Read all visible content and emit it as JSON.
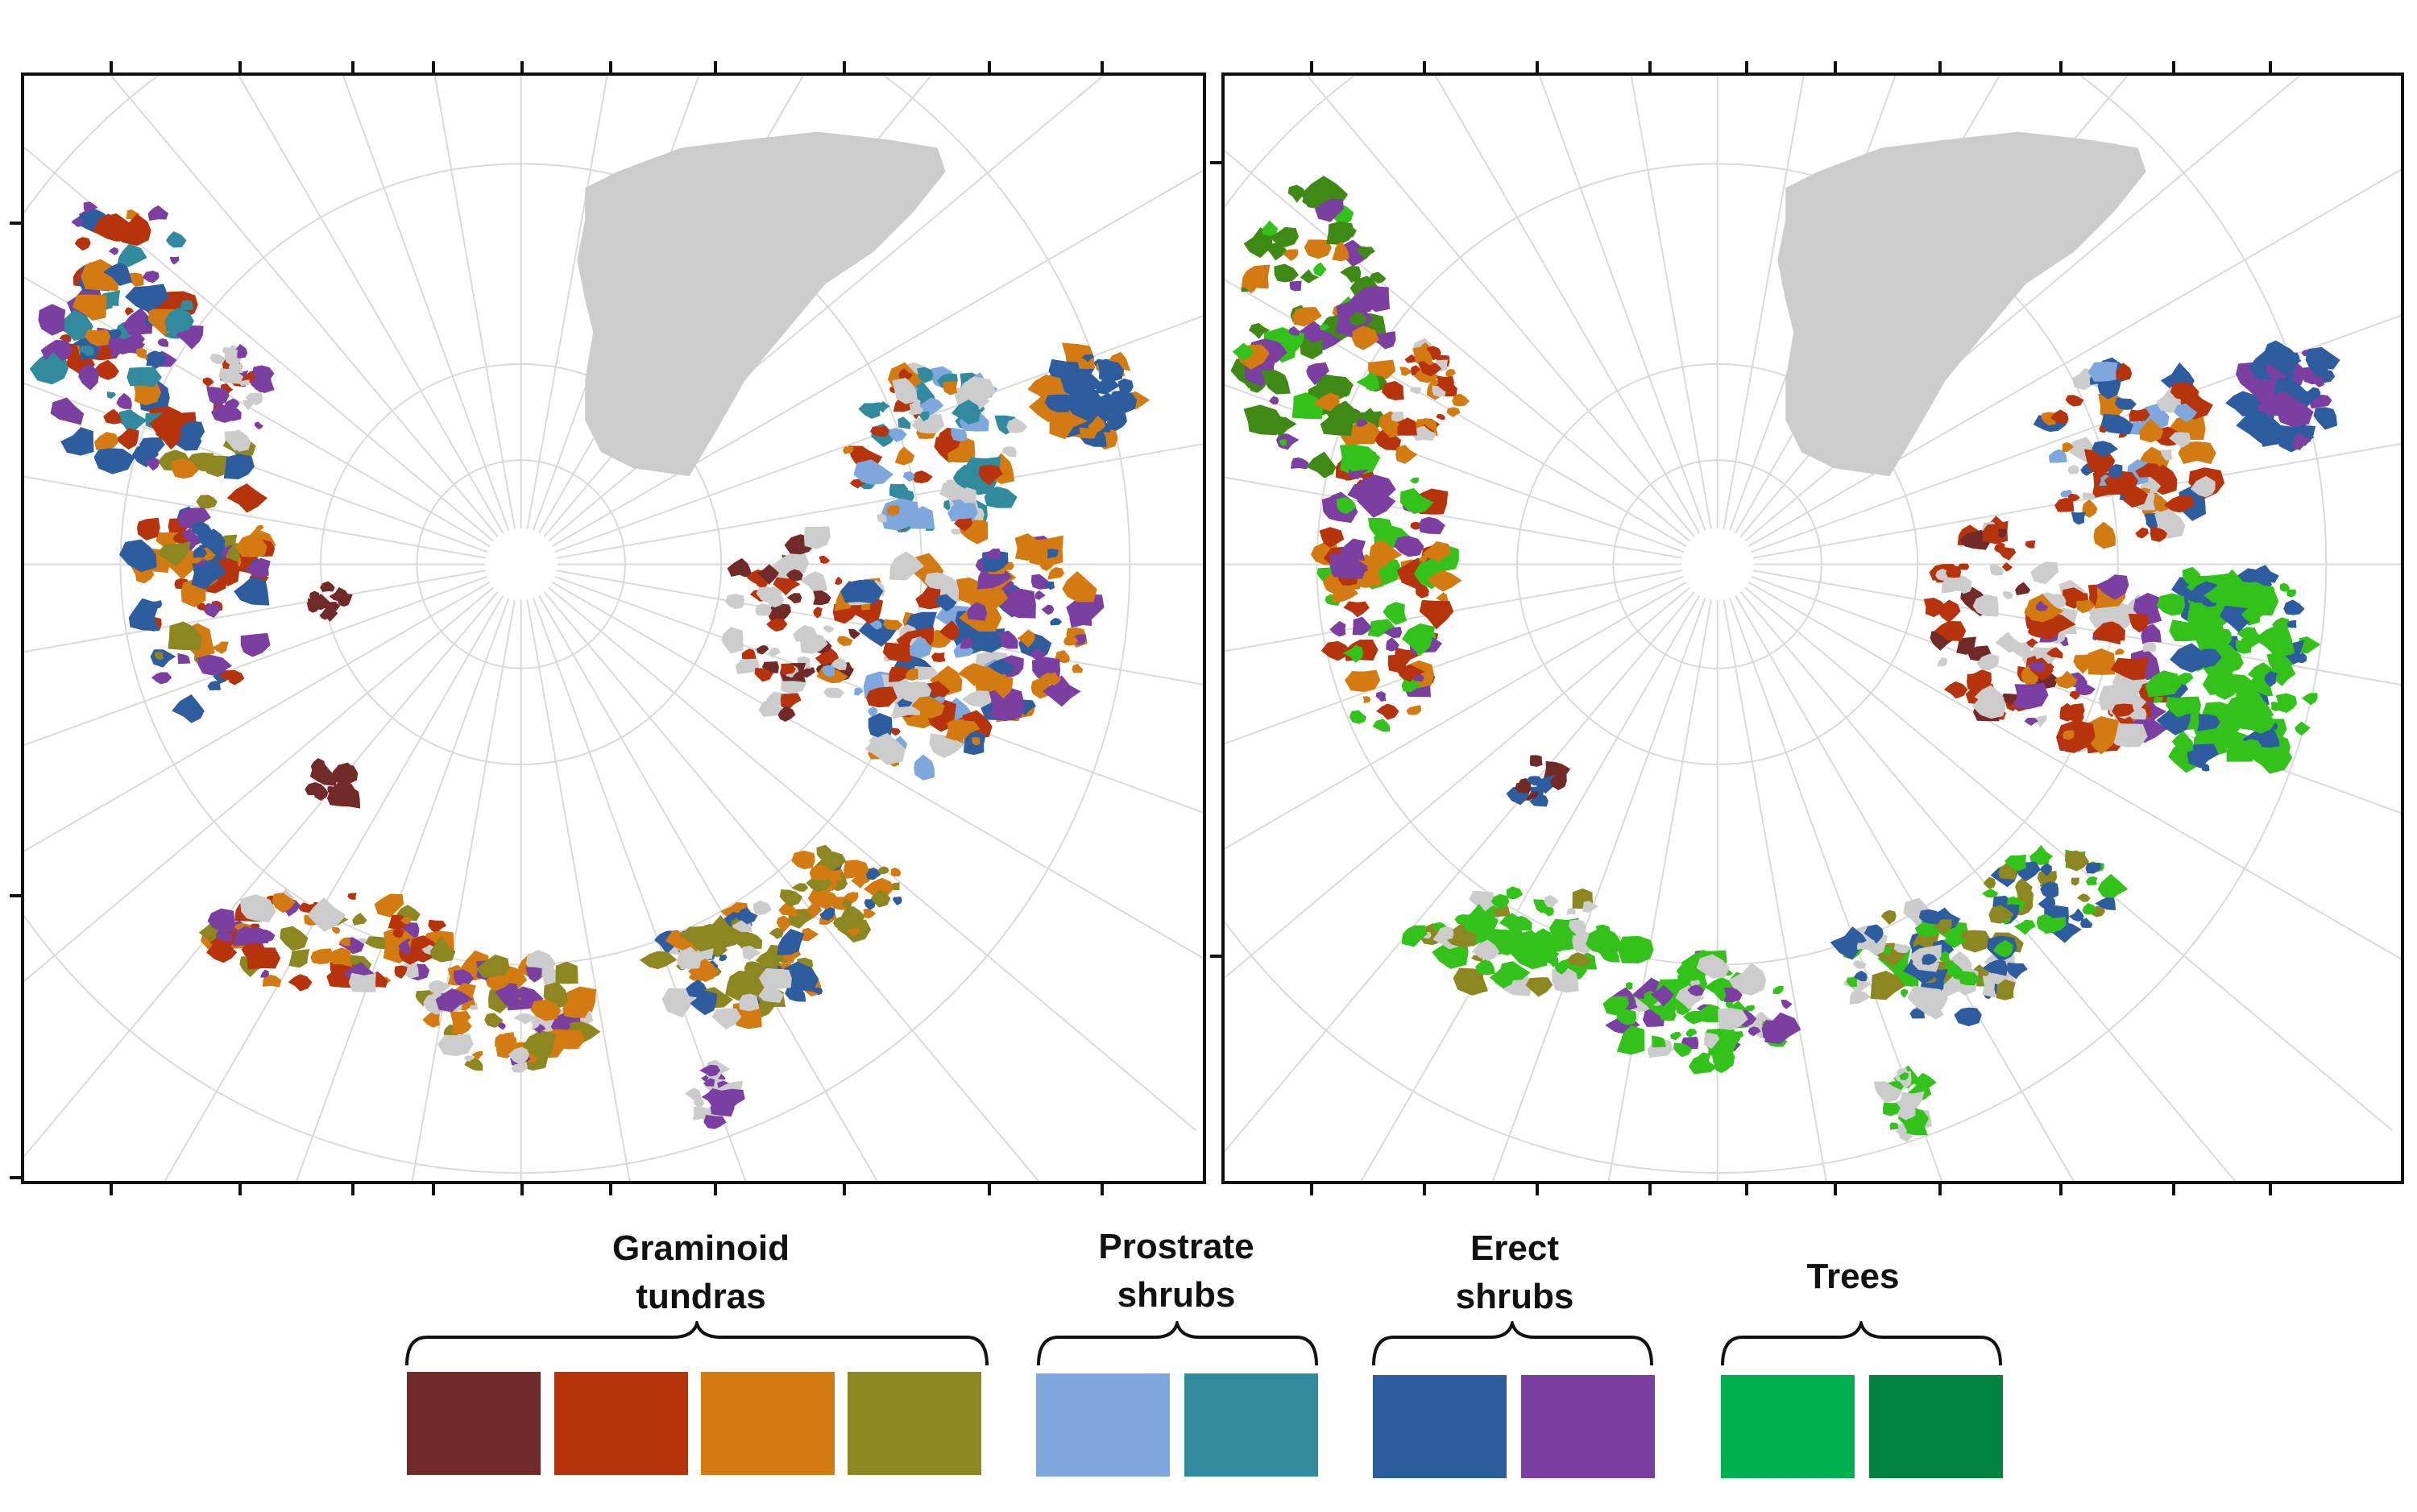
{
  "legend": {
    "groups": [
      {
        "label": "Graminoid\ntundras",
        "colors": [
          "#722a28",
          "#b7330c",
          "#d37b10",
          "#8c8721"
        ]
      },
      {
        "label": "Prostrate\nshrubs",
        "colors": [
          "#7ea7de",
          "#318a9e"
        ]
      },
      {
        "label": "Erect\nshrubs",
        "colors": [
          "#2e5d9f",
          "#7b3fa1"
        ]
      },
      {
        "label": "Trees",
        "colors": [
          "#00b050",
          "#00843d"
        ]
      }
    ]
  },
  "map": {
    "projection": "polar",
    "colors": {
      "greenland_ice": "#cccccc",
      "graticule": "#d9d9d9",
      "frame": "#111111",
      "trees_light": "#33c21a",
      "trees_dark": "#3f8a17"
    },
    "panels": [
      "left",
      "right"
    ]
  }
}
